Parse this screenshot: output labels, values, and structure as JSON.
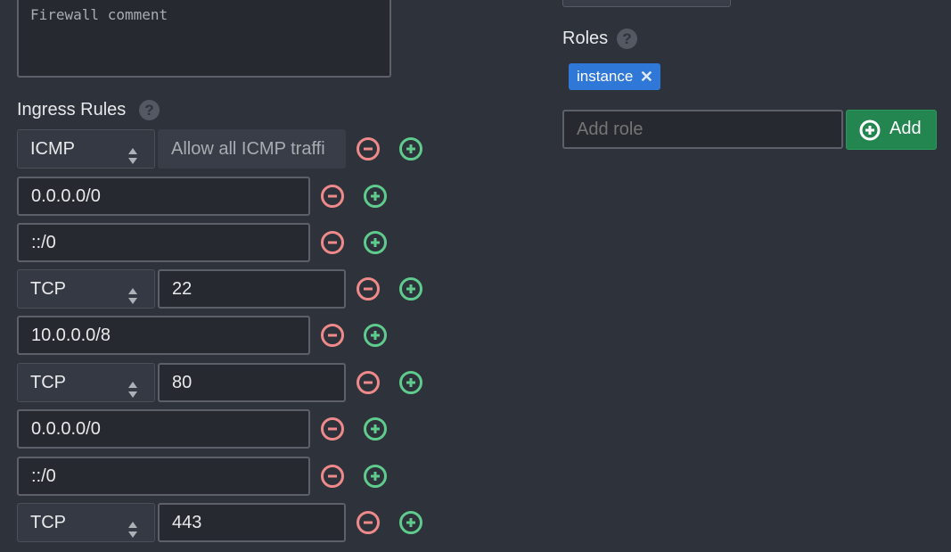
{
  "comment": {
    "placeholder": "Firewall comment"
  },
  "ingress": {
    "label": "Ingress Rules",
    "help_icon": "question-circle-icon",
    "rows": [
      {
        "kind": "rule",
        "protocol": "ICMP",
        "port": "Allow all ICMP traffi",
        "port_readonly": true
      },
      {
        "kind": "cidr",
        "value": "0.0.0.0/0"
      },
      {
        "kind": "cidr",
        "value": "::/0"
      },
      {
        "kind": "rule",
        "protocol": "TCP",
        "port": "22"
      },
      {
        "kind": "cidr",
        "value": "10.0.0.0/8"
      },
      {
        "kind": "rule",
        "protocol": "TCP",
        "port": "80"
      },
      {
        "kind": "cidr",
        "value": "0.0.0.0/0"
      },
      {
        "kind": "cidr",
        "value": "::/0"
      },
      {
        "kind": "rule",
        "protocol": "TCP",
        "port": "443"
      }
    ]
  },
  "roles": {
    "label": "Roles",
    "help_icon": "question-circle-icon",
    "tags": [
      {
        "label": "instance",
        "remove": "✕"
      }
    ],
    "input_placeholder": "Add role",
    "add_label": "Add"
  },
  "colors": {
    "remove": "#ef8a8a",
    "add": "#5fcb8d",
    "tag": "#2f78d8",
    "add_button": "#238650"
  }
}
